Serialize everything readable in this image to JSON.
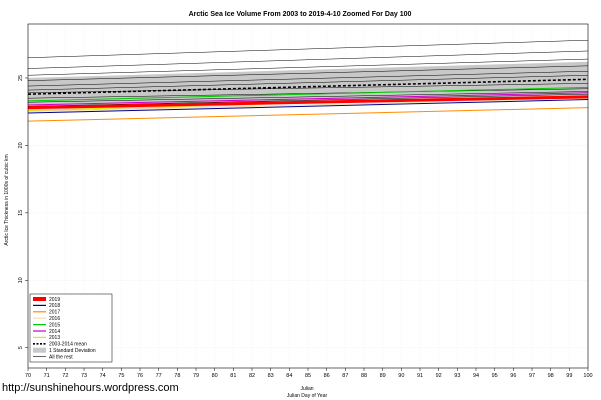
{
  "watermark": "http://sunshinehours.wordpress.com",
  "chart_data": {
    "type": "line",
    "title": "Arctic Sea Ice Volume From 2003 to 2019-4-10 Zoomed For Day 100",
    "xlabel": "Julian",
    "xlabel2": "Julian Day of Year",
    "ylabel": "Arctic Ice Thickness in 1000s of cubic km",
    "xlim": [
      70,
      100
    ],
    "ylim": [
      3.5,
      29
    ],
    "xticks": [
      70,
      71,
      72,
      73,
      74,
      75,
      76,
      77,
      78,
      79,
      80,
      81,
      82,
      83,
      84,
      85,
      86,
      87,
      88,
      89,
      90,
      91,
      92,
      93,
      94,
      95,
      96,
      97,
      98,
      99,
      100
    ],
    "yticks": [
      5,
      10,
      15,
      20,
      25
    ],
    "ytick_labels": [
      "5",
      "10",
      "15",
      "20",
      "25"
    ],
    "grid": true,
    "legend_position": "bottom-left",
    "std_band": {
      "name": "1 Standard Deviation",
      "x": [
        70,
        100
      ],
      "upper": [
        25.0,
        26.2
      ],
      "lower": [
        22.5,
        23.7
      ],
      "color": "#c8c8c8"
    },
    "series": [
      {
        "name": "2019",
        "color": "#ff0000",
        "x": [
          70,
          100
        ],
        "y": [
          22.8,
          23.6
        ],
        "width": 3
      },
      {
        "name": "2018",
        "color": "#00008b",
        "x": [
          70,
          100
        ],
        "y": [
          22.4,
          23.4
        ],
        "width": 1
      },
      {
        "name": "2017",
        "color": "#ff8c00",
        "x": [
          70,
          100
        ],
        "y": [
          21.8,
          22.8
        ],
        "width": 1
      },
      {
        "name": "2016",
        "color": "#f5deb3",
        "x": [
          70,
          100
        ],
        "y": [
          22.5,
          23.5
        ],
        "width": 1
      },
      {
        "name": "2015",
        "color": "#00cc00",
        "x": [
          70,
          100
        ],
        "y": [
          23.3,
          24.3
        ],
        "width": 1
      },
      {
        "name": "2014",
        "color": "#cc00cc",
        "x": [
          70,
          100
        ],
        "y": [
          23.0,
          23.9
        ],
        "width": 1
      },
      {
        "name": "2013",
        "color": "#e6e600",
        "x": [
          70,
          100
        ],
        "y": [
          22.6,
          23.7
        ],
        "width": 1
      },
      {
        "name": "2003-2014 mean",
        "color": "#000000",
        "x": [
          70,
          100
        ],
        "y": [
          23.8,
          24.9
        ],
        "width": 1.6,
        "dashed": true
      },
      {
        "name": "All the rest",
        "color": "#000000",
        "x": [
          70,
          100
        ],
        "y": [
          26.5,
          27.8
        ],
        "width": 0.5,
        "rest": true
      },
      {
        "color": "#000000",
        "x": [
          70,
          100
        ],
        "y": [
          25.7,
          27.0
        ],
        "width": 0.5,
        "rest": true
      },
      {
        "color": "#000000",
        "x": [
          70,
          100
        ],
        "y": [
          25.2,
          26.4
        ],
        "width": 0.5,
        "rest": true
      },
      {
        "color": "#000000",
        "x": [
          70,
          100
        ],
        "y": [
          24.8,
          25.9
        ],
        "width": 0.5,
        "rest": true
      },
      {
        "color": "#000000",
        "x": [
          70,
          100
        ],
        "y": [
          24.4,
          25.5
        ],
        "width": 0.5,
        "rest": true
      },
      {
        "color": "#000000",
        "x": [
          70,
          100
        ],
        "y": [
          24.1,
          25.2
        ],
        "width": 0.5,
        "rest": true
      },
      {
        "color": "#000000",
        "x": [
          70,
          100
        ],
        "y": [
          23.9,
          24.6
        ],
        "width": 0.5,
        "rest": true
      },
      {
        "color": "#000000",
        "x": [
          70,
          100
        ],
        "y": [
          23.5,
          24.2
        ],
        "width": 0.5,
        "rest": true
      },
      {
        "color": "#000000",
        "x": [
          70,
          100
        ],
        "y": [
          23.2,
          24.0
        ],
        "width": 0.5,
        "rest": true
      },
      {
        "color": "#000000",
        "x": [
          70,
          100
        ],
        "y": [
          22.9,
          23.8
        ],
        "width": 0.5,
        "rest": true
      }
    ],
    "legend": [
      {
        "label": "2019",
        "color": "#ff0000",
        "style": "thick"
      },
      {
        "label": "2018",
        "color": "#00008b",
        "style": "line"
      },
      {
        "label": "2017",
        "color": "#ff8c00",
        "style": "line"
      },
      {
        "label": "2016",
        "color": "#f5deb3",
        "style": "line"
      },
      {
        "label": "2015",
        "color": "#00cc00",
        "style": "line"
      },
      {
        "label": "2014",
        "color": "#cc00cc",
        "style": "line"
      },
      {
        "label": "2013",
        "color": "#e6e600",
        "style": "line"
      },
      {
        "label": "2003-2014 mean",
        "color": "#000000",
        "style": "dashed"
      },
      {
        "label": "1 Standard Deviation",
        "color": "#c8c8c8",
        "style": "band"
      },
      {
        "label": "All the rest",
        "color": "#000000",
        "style": "thin"
      }
    ]
  }
}
